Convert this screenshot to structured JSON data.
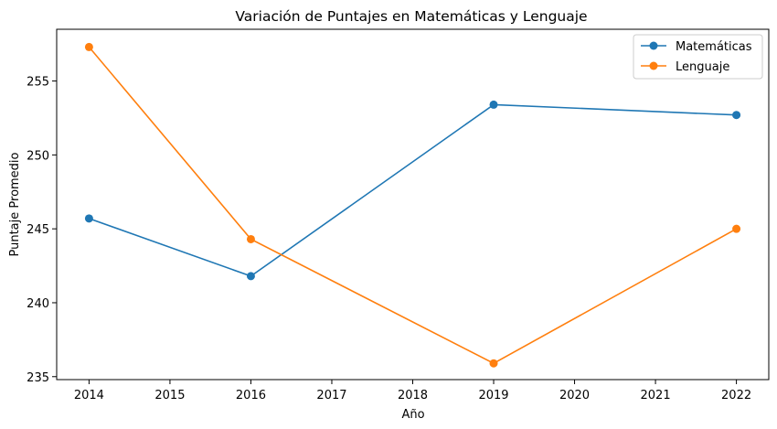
{
  "chart_data": {
    "type": "line",
    "title": "Variación de Puntajes en Matemáticas y Lenguaje",
    "xlabel": "Año",
    "ylabel": "Puntaje Promedio",
    "x": [
      2014,
      2016,
      2019,
      2022
    ],
    "xlim": [
      2013.6,
      2022.4
    ],
    "ylim": [
      234.8,
      258.5
    ],
    "xticks": [
      "2014",
      "2015",
      "2016",
      "2017",
      "2018",
      "2019",
      "2020",
      "2021",
      "2022"
    ],
    "yticks": [
      "235",
      "240",
      "245",
      "250",
      "255"
    ],
    "grid": false,
    "legend_position": "top-right",
    "series": [
      {
        "name": "Matemáticas",
        "color": "#1f77b4",
        "values": [
          245.7,
          241.8,
          253.4,
          252.7
        ]
      },
      {
        "name": "Lenguaje",
        "color": "#ff7f0e",
        "values": [
          257.3,
          244.3,
          235.9,
          245.0
        ]
      }
    ]
  }
}
